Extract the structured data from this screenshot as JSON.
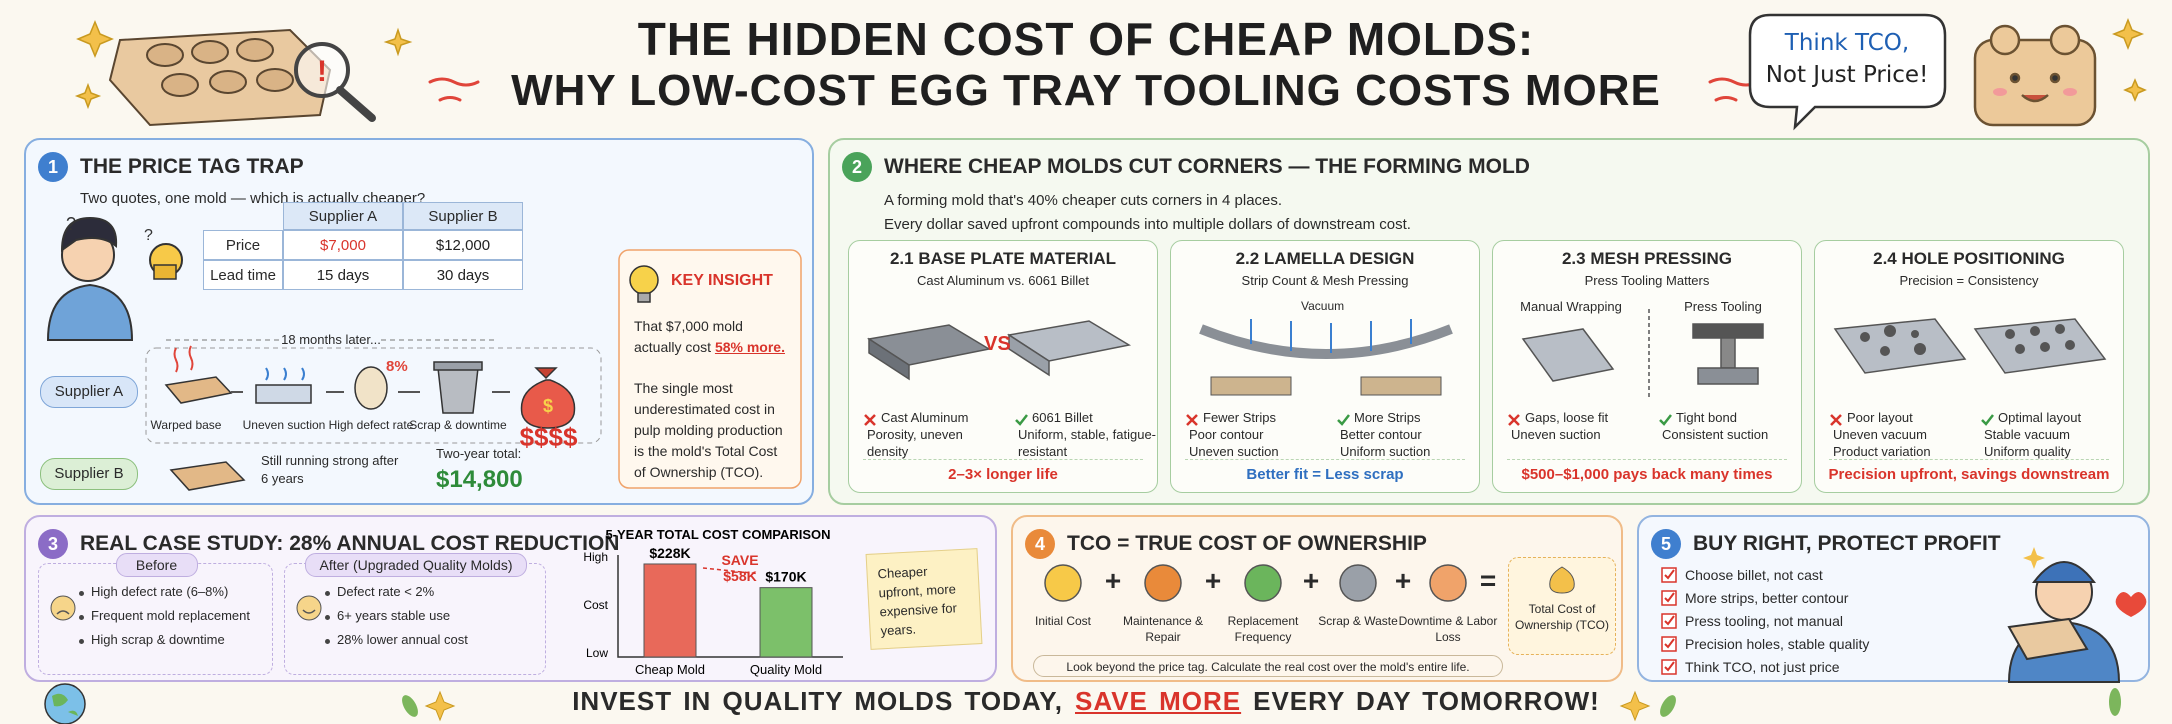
{
  "header": {
    "title_line1": "THE HIDDEN COST OF CHEAP MOLDS:",
    "title_line2": "WHY LOW-COST EGG TRAY TOOLING COSTS MORE",
    "bubble_lines": [
      "Think TCO,",
      "Not Just Price!"
    ]
  },
  "s1": {
    "number": "1",
    "title": "THE PRICE TAG TRAP",
    "subtitle": "Two quotes, one mold — which is actually cheaper?",
    "table": {
      "columns": [
        "Supplier A",
        "Supplier B"
      ],
      "rows": [
        {
          "label": "Price",
          "cells": [
            "$7,000",
            "$12,000"
          ]
        },
        {
          "label": "Lead time",
          "cells": [
            "15 days",
            "30 days"
          ]
        }
      ]
    },
    "timeline_label": "18 months later...",
    "supplier_a": {
      "label": "Supplier A",
      "steps": [
        "Warped base",
        "Uneven suction",
        "High defect rate",
        "Scrap & downtime"
      ],
      "defect": "8%",
      "cost": "$$$$"
    },
    "supplier_b": {
      "label": "Supplier B",
      "note": "Still running strong after 6 years",
      "total_label": "Two-year total:",
      "total": "$14,800"
    },
    "insight": {
      "title": "KEY INSIGHT",
      "text1": "That $7,000 mold actually cost",
      "highlight": "58% more.",
      "text2": "The single most underestimated cost in pulp molding production is the mold's Total Cost of Ownership (TCO)."
    }
  },
  "s2": {
    "number": "2",
    "title": "WHERE CHEAP MOLDS CUT CORNERS — THE FORMING MOLD",
    "desc": [
      "A forming mold that's 40% cheaper cuts corners in 4 places.",
      "Every dollar saved upfront compounds into multiple dollars of downstream cost."
    ],
    "cards": [
      {
        "title": "2.1 BASE PLATE MATERIAL",
        "subtitle": "Cast Aluminum vs. 6061 Billet",
        "vs": "VS",
        "left": [
          "Cast Aluminum",
          "Porosity, uneven density"
        ],
        "right": [
          "6061 Billet",
          "Uniform, stable, fatigue-resistant"
        ],
        "footer": "2–3× longer life"
      },
      {
        "title": "2.2 LAMELLA DESIGN",
        "subtitle": "Strip Count & Mesh Pressing",
        "vacuum": "Vacuum",
        "left": [
          "Fewer Strips",
          "Poor contour",
          "Uneven suction"
        ],
        "right": [
          "More Strips",
          "Better contour",
          "Uniform suction"
        ],
        "footer": "Better fit = Less scrap"
      },
      {
        "title": "2.3 MESH PRESSING",
        "subtitle": "Press Tooling Matters",
        "heads": [
          "Manual Wrapping",
          "Press Tooling"
        ],
        "left": [
          "Gaps, loose fit",
          "Uneven suction"
        ],
        "right": [
          "Tight bond",
          "Consistent suction"
        ],
        "footer": "$500–$1,000 pays back many times"
      },
      {
        "title": "2.4 HOLE POSITIONING",
        "subtitle": "Precision = Consistency",
        "left": [
          "Poor layout",
          "Uneven vacuum",
          "Product variation"
        ],
        "right": [
          "Optimal layout",
          "Stable vacuum",
          "Uniform quality"
        ],
        "footer": "Precision upfront, savings downstream"
      }
    ]
  },
  "s3": {
    "number": "3",
    "title": "REAL CASE STUDY: 28% ANNUAL COST REDUCTION",
    "before": {
      "title": "Before",
      "items": [
        "High defect rate (6–8%)",
        "Frequent mold replacement",
        "High scrap & downtime"
      ]
    },
    "after": {
      "title": "After (Upgraded Quality Molds)",
      "items": [
        "Defect rate < 2%",
        "6+ years stable use",
        "28% lower annual cost"
      ]
    },
    "chart": {
      "type": "bar",
      "title": "5-YEAR TOTAL COST COMPARISON",
      "y_axis_labels": [
        "High",
        "Cost",
        "Low"
      ],
      "categories": [
        "Cheap Mold",
        "Quality Mold"
      ],
      "values": [
        228000,
        170000
      ],
      "value_labels": [
        "$228K",
        "$170K"
      ],
      "colors": [
        "#e8695a",
        "#7cc06a"
      ],
      "ylim": [
        0,
        250000
      ],
      "savings": [
        "SAVE",
        "$58K"
      ]
    },
    "note": "Cheaper upfront, more expensive for years."
  },
  "s4": {
    "number": "4",
    "title": "TCO = TRUE COST OF OWNERSHIP",
    "items": [
      "Initial Cost",
      "Maintenance & Repair",
      "Replacement Frequency",
      "Scrap & Waste",
      "Downtime & Labor Loss"
    ],
    "operators": [
      "+",
      "+",
      "+",
      "+",
      "="
    ],
    "result": "Total Cost of Ownership (TCO)",
    "footnote": "Look beyond the price tag. Calculate the real cost over the mold's entire life."
  },
  "s5": {
    "number": "5",
    "title": "BUY RIGHT, PROTECT PROFIT",
    "items": [
      "Choose billet, not cast",
      "More strips, better contour",
      "Press tooling, not manual",
      "Precision holes, stable quality",
      "Think TCO, not just price"
    ]
  },
  "footer": [
    "INVEST IN QUALITY MOLDS TODAY,",
    "SAVE MORE",
    "EVERY DAY TOMORROW!"
  ]
}
